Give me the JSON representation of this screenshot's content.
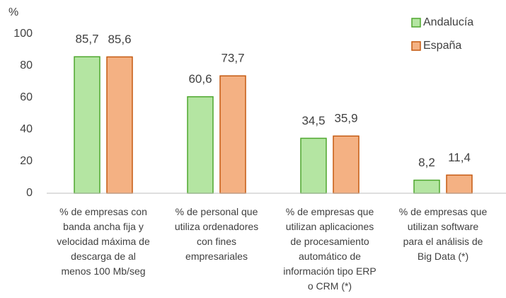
{
  "chart_data": {
    "type": "bar",
    "ylabel": "%",
    "categories": [
      "% de empresas con\nbanda ancha fija y\nvelocidad máxima de\ndescarga de al\nmenos 100 Mb/seg",
      "% de personal que\nutiliza ordenadores\ncon fines\nempresariales",
      "% de empresas que\nutilizan aplicaciones\nde procesamiento\nautomático de\ninformación tipo ERP\no CRM (*)",
      "% de empresas que\nutilizan software\npara el análisis de\nBig Data (*)"
    ],
    "series": [
      {
        "name": "Andalucía",
        "color": "#b4e5a2",
        "edgecolor": "#4ea72e",
        "values": [
          85.7,
          60.6,
          34.5,
          8.2
        ],
        "value_labels": [
          "85,7",
          "60,6",
          "34,5",
          "8,2"
        ]
      },
      {
        "name": "España",
        "color": "#f4b183",
        "edgecolor": "#c55a11",
        "values": [
          85.6,
          73.7,
          35.9,
          11.4
        ],
        "value_labels": [
          "85,6",
          "73,7",
          "35,9",
          "11,4"
        ]
      }
    ],
    "ylim": [
      0,
      100
    ],
    "yticks": [
      0,
      20,
      40,
      60,
      80,
      100
    ],
    "grid": false,
    "legend": "upper right"
  }
}
